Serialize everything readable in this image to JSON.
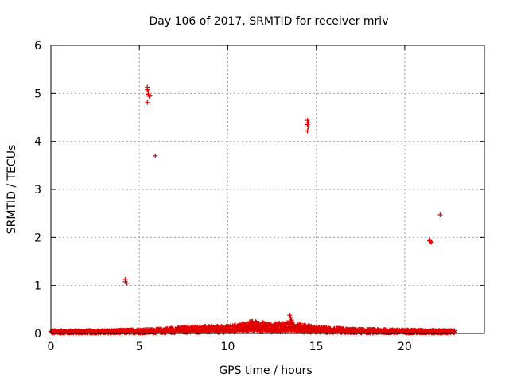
{
  "chart_data": {
    "type": "scatter",
    "title": "Day 106 of 2017, SRMTID for receiver mriv",
    "xlabel": "GPS time / hours",
    "ylabel": "SRMTID / TECUs",
    "xlim": [
      0,
      24.5
    ],
    "ylim": [
      0,
      6
    ],
    "xticks": [
      0,
      5,
      10,
      15,
      20
    ],
    "yticks": [
      0,
      1,
      2,
      3,
      4,
      5,
      6
    ],
    "grid": true,
    "marker": "+",
    "color": "#e00000",
    "baseline": {
      "description": "dense band of low values",
      "x_range": [
        0,
        22.8
      ],
      "profile": [
        [
          0,
          0.04
        ],
        [
          3,
          0.04
        ],
        [
          6,
          0.06
        ],
        [
          8,
          0.1
        ],
        [
          10,
          0.1
        ],
        [
          11.5,
          0.18
        ],
        [
          12.5,
          0.13
        ],
        [
          13.5,
          0.17
        ],
        [
          15,
          0.09
        ],
        [
          17,
          0.06
        ],
        [
          20,
          0.05
        ],
        [
          22.8,
          0.04
        ]
      ]
    },
    "outliers": [
      {
        "x": 4.2,
        "y": 1.13
      },
      {
        "x": 4.2,
        "y": 1.08
      },
      {
        "x": 4.3,
        "y": 1.05
      },
      {
        "x": 5.45,
        "y": 5.13
      },
      {
        "x": 5.45,
        "y": 5.08
      },
      {
        "x": 5.5,
        "y": 5.03
      },
      {
        "x": 5.5,
        "y": 4.98
      },
      {
        "x": 5.55,
        "y": 4.94
      },
      {
        "x": 5.6,
        "y": 4.96
      },
      {
        "x": 5.45,
        "y": 4.81
      },
      {
        "x": 5.9,
        "y": 3.7
      },
      {
        "x": 14.5,
        "y": 4.44
      },
      {
        "x": 14.55,
        "y": 4.39
      },
      {
        "x": 14.5,
        "y": 4.35
      },
      {
        "x": 14.55,
        "y": 4.3
      },
      {
        "x": 14.5,
        "y": 4.22
      },
      {
        "x": 13.5,
        "y": 0.38
      },
      {
        "x": 13.55,
        "y": 0.33
      },
      {
        "x": 13.6,
        "y": 0.28
      },
      {
        "x": 13.65,
        "y": 0.24
      },
      {
        "x": 21.4,
        "y": 1.95
      },
      {
        "x": 21.45,
        "y": 1.92
      },
      {
        "x": 21.5,
        "y": 1.9
      },
      {
        "x": 21.4,
        "y": 1.93
      },
      {
        "x": 22.0,
        "y": 2.47
      }
    ]
  }
}
